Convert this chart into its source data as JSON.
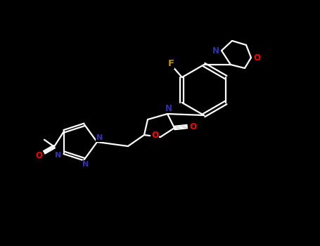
{
  "background_color": "#000000",
  "bond_color": "#ffffff",
  "atom_colors": {
    "N": "#3030b0",
    "O": "#ff0000",
    "F": "#b8960a",
    "C": "#ffffff"
  },
  "figsize": [
    4.55,
    3.5
  ],
  "dpi": 100
}
